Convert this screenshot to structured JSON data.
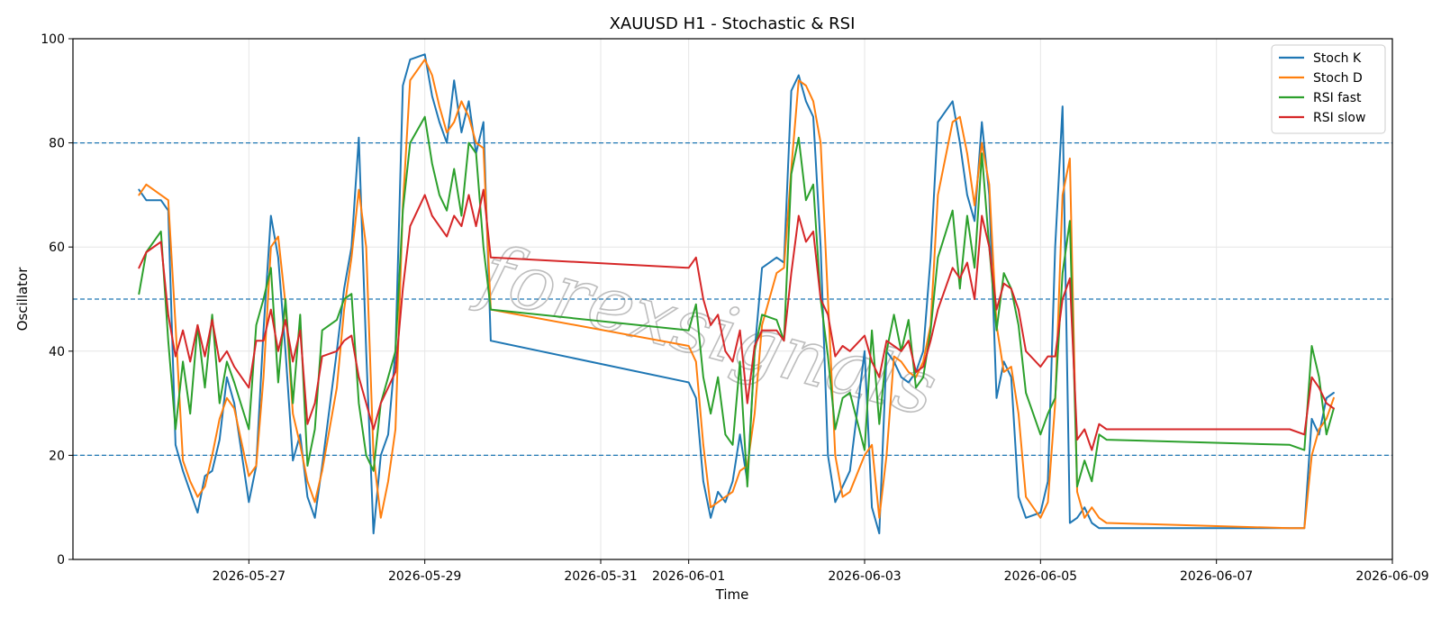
{
  "chart_data": {
    "type": "line",
    "title": "XAUUSD H1 - Stochastic & RSI",
    "xlabel": "Time",
    "ylabel": "Oscillator",
    "ylim": [
      0,
      100
    ],
    "xlim": [
      "2026-05-25T00:00",
      "2026-06-09T00:00"
    ],
    "yticks": [
      0,
      20,
      40,
      60,
      80,
      100
    ],
    "xticks": [
      "2026-05-27",
      "2026-05-29",
      "2026-05-31",
      "2026-06-01",
      "2026-06-03",
      "2026-06-05",
      "2026-06-07",
      "2026-06-09"
    ],
    "grid": true,
    "legend_position": "top-right",
    "reference_lines": [
      20,
      50,
      80
    ],
    "watermark": "forexsignals",
    "series": [
      {
        "name": "Stoch K",
        "color": "#1f77b4",
        "x": [
          "2026-05-25T18:00",
          "2026-05-25T20:00",
          "2026-05-26T00:00",
          "2026-05-26T02:00",
          "2026-05-26T04:00",
          "2026-05-26T06:00",
          "2026-05-26T08:00",
          "2026-05-26T10:00",
          "2026-05-26T12:00",
          "2026-05-26T14:00",
          "2026-05-26T16:00",
          "2026-05-26T18:00",
          "2026-05-26T20:00",
          "2026-05-27T00:00",
          "2026-05-27T02:00",
          "2026-05-27T04:00",
          "2026-05-27T06:00",
          "2026-05-27T08:00",
          "2026-05-27T10:00",
          "2026-05-27T12:00",
          "2026-05-27T14:00",
          "2026-05-27T16:00",
          "2026-05-27T18:00",
          "2026-05-27T20:00",
          "2026-05-28T00:00",
          "2026-05-28T02:00",
          "2026-05-28T04:00",
          "2026-05-28T06:00",
          "2026-05-28T08:00",
          "2026-05-28T10:00",
          "2026-05-28T12:00",
          "2026-05-28T14:00",
          "2026-05-28T16:00",
          "2026-05-28T18:00",
          "2026-05-28T20:00",
          "2026-05-29T00:00",
          "2026-05-29T02:00",
          "2026-05-29T04:00",
          "2026-05-29T06:00",
          "2026-05-29T08:00",
          "2026-05-29T10:00",
          "2026-05-29T12:00",
          "2026-05-29T14:00",
          "2026-05-29T16:00",
          "2026-05-29T18:00",
          "2026-06-01T00:00",
          "2026-06-01T02:00",
          "2026-06-01T04:00",
          "2026-06-01T06:00",
          "2026-06-01T08:00",
          "2026-06-01T10:00",
          "2026-06-01T12:00",
          "2026-06-01T14:00",
          "2026-06-01T16:00",
          "2026-06-01T18:00",
          "2026-06-01T20:00",
          "2026-06-02T00:00",
          "2026-06-02T02:00",
          "2026-06-02T04:00",
          "2026-06-02T06:00",
          "2026-06-02T08:00",
          "2026-06-02T10:00",
          "2026-06-02T12:00",
          "2026-06-02T14:00",
          "2026-06-02T16:00",
          "2026-06-02T18:00",
          "2026-06-02T20:00",
          "2026-06-03T00:00",
          "2026-06-03T02:00",
          "2026-06-03T04:00",
          "2026-06-03T06:00",
          "2026-06-03T08:00",
          "2026-06-03T10:00",
          "2026-06-03T12:00",
          "2026-06-03T14:00",
          "2026-06-03T16:00",
          "2026-06-03T18:00",
          "2026-06-03T20:00",
          "2026-06-04T00:00",
          "2026-06-04T02:00",
          "2026-06-04T04:00",
          "2026-06-04T06:00",
          "2026-06-04T08:00",
          "2026-06-04T10:00",
          "2026-06-04T12:00",
          "2026-06-04T14:00",
          "2026-06-04T16:00",
          "2026-06-04T18:00",
          "2026-06-04T20:00",
          "2026-06-05T00:00",
          "2026-06-05T02:00",
          "2026-06-05T04:00",
          "2026-06-05T06:00",
          "2026-06-05T08:00",
          "2026-06-05T10:00",
          "2026-06-05T12:00",
          "2026-06-05T14:00",
          "2026-06-05T16:00",
          "2026-06-05T18:00",
          "2026-06-07T20:00",
          "2026-06-08T00:00",
          "2026-06-08T02:00",
          "2026-06-08T04:00",
          "2026-06-08T06:00",
          "2026-06-08T08:00"
        ],
        "y": [
          71,
          69,
          69,
          67,
          22,
          17,
          13,
          9,
          16,
          17,
          23,
          35,
          30,
          11,
          18,
          44,
          66,
          58,
          40,
          19,
          24,
          12,
          8,
          18,
          40,
          52,
          60,
          81,
          40,
          5,
          20,
          24,
          40,
          91,
          96,
          97,
          89,
          84,
          80,
          92,
          82,
          88,
          78,
          84,
          42,
          34,
          31,
          15,
          8,
          13,
          11,
          15,
          24,
          15,
          40,
          56,
          58,
          57,
          90,
          93,
          88,
          85,
          60,
          20,
          11,
          14,
          17,
          40,
          10,
          5,
          40,
          38,
          35,
          34,
          36,
          40,
          58,
          84,
          88,
          80,
          70,
          65,
          84,
          70,
          31,
          38,
          35,
          12,
          8,
          9,
          15,
          60,
          87,
          7,
          8,
          10,
          7,
          6,
          6,
          6,
          6,
          27,
          24,
          31,
          32
        ]
      },
      {
        "name": "Stoch D",
        "color": "#ff7f0e",
        "x": [
          "2026-05-25T18:00",
          "2026-05-25T20:00",
          "2026-05-26T00:00",
          "2026-05-26T02:00",
          "2026-05-26T04:00",
          "2026-05-26T06:00",
          "2026-05-26T08:00",
          "2026-05-26T10:00",
          "2026-05-26T12:00",
          "2026-05-26T14:00",
          "2026-05-26T16:00",
          "2026-05-26T18:00",
          "2026-05-26T20:00",
          "2026-05-27T00:00",
          "2026-05-27T02:00",
          "2026-05-27T04:00",
          "2026-05-27T06:00",
          "2026-05-27T08:00",
          "2026-05-27T10:00",
          "2026-05-27T12:00",
          "2026-05-27T14:00",
          "2026-05-27T16:00",
          "2026-05-27T18:00",
          "2026-05-27T20:00",
          "2026-05-28T00:00",
          "2026-05-28T02:00",
          "2026-05-28T04:00",
          "2026-05-28T06:00",
          "2026-05-28T08:00",
          "2026-05-28T10:00",
          "2026-05-28T12:00",
          "2026-05-28T14:00",
          "2026-05-28T16:00",
          "2026-05-28T18:00",
          "2026-05-28T20:00",
          "2026-05-29T00:00",
          "2026-05-29T02:00",
          "2026-05-29T04:00",
          "2026-05-29T06:00",
          "2026-05-29T08:00",
          "2026-05-29T10:00",
          "2026-05-29T12:00",
          "2026-05-29T14:00",
          "2026-05-29T16:00",
          "2026-05-29T18:00",
          "2026-06-01T00:00",
          "2026-06-01T02:00",
          "2026-06-01T04:00",
          "2026-06-01T06:00",
          "2026-06-01T08:00",
          "2026-06-01T10:00",
          "2026-06-01T12:00",
          "2026-06-01T14:00",
          "2026-06-01T16:00",
          "2026-06-01T18:00",
          "2026-06-01T20:00",
          "2026-06-02T00:00",
          "2026-06-02T02:00",
          "2026-06-02T04:00",
          "2026-06-02T06:00",
          "2026-06-02T08:00",
          "2026-06-02T10:00",
          "2026-06-02T12:00",
          "2026-06-02T14:00",
          "2026-06-02T16:00",
          "2026-06-02T18:00",
          "2026-06-02T20:00",
          "2026-06-03T00:00",
          "2026-06-03T02:00",
          "2026-06-03T04:00",
          "2026-06-03T06:00",
          "2026-06-03T08:00",
          "2026-06-03T10:00",
          "2026-06-03T12:00",
          "2026-06-03T14:00",
          "2026-06-03T16:00",
          "2026-06-03T18:00",
          "2026-06-03T20:00",
          "2026-06-04T00:00",
          "2026-06-04T02:00",
          "2026-06-04T04:00",
          "2026-06-04T06:00",
          "2026-06-04T08:00",
          "2026-06-04T10:00",
          "2026-06-04T12:00",
          "2026-06-04T14:00",
          "2026-06-04T16:00",
          "2026-06-04T18:00",
          "2026-06-04T20:00",
          "2026-06-05T00:00",
          "2026-06-05T02:00",
          "2026-06-05T04:00",
          "2026-06-05T06:00",
          "2026-06-05T08:00",
          "2026-06-05T10:00",
          "2026-06-05T12:00",
          "2026-06-05T14:00",
          "2026-06-05T16:00",
          "2026-06-05T18:00",
          "2026-06-07T20:00",
          "2026-06-08T00:00",
          "2026-06-08T02:00",
          "2026-06-08T04:00",
          "2026-06-08T06:00",
          "2026-06-08T08:00"
        ],
        "y": [
          70,
          72,
          70,
          69,
          45,
          19,
          15,
          12,
          14,
          20,
          27,
          31,
          29,
          16,
          18,
          35,
          60,
          62,
          49,
          28,
          22,
          15,
          11,
          17,
          33,
          48,
          58,
          71,
          60,
          20,
          8,
          15,
          25,
          68,
          92,
          96,
          93,
          87,
          82,
          84,
          88,
          85,
          80,
          79,
          48,
          41,
          38,
          22,
          10,
          11,
          12,
          13,
          17,
          18,
          28,
          45,
          55,
          56,
          75,
          92,
          91,
          88,
          80,
          50,
          20,
          12,
          13,
          20,
          22,
          8,
          20,
          39,
          38,
          36,
          35,
          38,
          45,
          70,
          84,
          85,
          78,
          68,
          80,
          72,
          45,
          36,
          37,
          28,
          12,
          8,
          11,
          30,
          70,
          77,
          13,
          8,
          10,
          8,
          7,
          6,
          6,
          20,
          25,
          27,
          31
        ]
      },
      {
        "name": "RSI fast",
        "color": "#2ca02c",
        "x": [
          "2026-05-25T18:00",
          "2026-05-25T20:00",
          "2026-05-26T00:00",
          "2026-05-26T02:00",
          "2026-05-26T04:00",
          "2026-05-26T06:00",
          "2026-05-26T08:00",
          "2026-05-26T10:00",
          "2026-05-26T12:00",
          "2026-05-26T14:00",
          "2026-05-26T16:00",
          "2026-05-26T18:00",
          "2026-05-26T20:00",
          "2026-05-27T00:00",
          "2026-05-27T02:00",
          "2026-05-27T04:00",
          "2026-05-27T06:00",
          "2026-05-27T08:00",
          "2026-05-27T10:00",
          "2026-05-27T12:00",
          "2026-05-27T14:00",
          "2026-05-27T16:00",
          "2026-05-27T18:00",
          "2026-05-27T20:00",
          "2026-05-28T00:00",
          "2026-05-28T02:00",
          "2026-05-28T04:00",
          "2026-05-28T06:00",
          "2026-05-28T08:00",
          "2026-05-28T10:00",
          "2026-05-28T12:00",
          "2026-05-28T14:00",
          "2026-05-28T16:00",
          "2026-05-28T18:00",
          "2026-05-28T20:00",
          "2026-05-29T00:00",
          "2026-05-29T02:00",
          "2026-05-29T04:00",
          "2026-05-29T06:00",
          "2026-05-29T08:00",
          "2026-05-29T10:00",
          "2026-05-29T12:00",
          "2026-05-29T14:00",
          "2026-05-29T16:00",
          "2026-05-29T18:00",
          "2026-06-01T00:00",
          "2026-06-01T02:00",
          "2026-06-01T04:00",
          "2026-06-01T06:00",
          "2026-06-01T08:00",
          "2026-06-01T10:00",
          "2026-06-01T12:00",
          "2026-06-01T14:00",
          "2026-06-01T16:00",
          "2026-06-01T18:00",
          "2026-06-01T20:00",
          "2026-06-02T00:00",
          "2026-06-02T02:00",
          "2026-06-02T04:00",
          "2026-06-02T06:00",
          "2026-06-02T08:00",
          "2026-06-02T10:00",
          "2026-06-02T12:00",
          "2026-06-02T14:00",
          "2026-06-02T16:00",
          "2026-06-02T18:00",
          "2026-06-02T20:00",
          "2026-06-03T00:00",
          "2026-06-03T02:00",
          "2026-06-03T04:00",
          "2026-06-03T06:00",
          "2026-06-03T08:00",
          "2026-06-03T10:00",
          "2026-06-03T12:00",
          "2026-06-03T14:00",
          "2026-06-03T16:00",
          "2026-06-03T18:00",
          "2026-06-03T20:00",
          "2026-06-04T00:00",
          "2026-06-04T02:00",
          "2026-06-04T04:00",
          "2026-06-04T06:00",
          "2026-06-04T08:00",
          "2026-06-04T10:00",
          "2026-06-04T12:00",
          "2026-06-04T14:00",
          "2026-06-04T16:00",
          "2026-06-04T18:00",
          "2026-06-04T20:00",
          "2026-06-05T00:00",
          "2026-06-05T02:00",
          "2026-06-05T04:00",
          "2026-06-05T06:00",
          "2026-06-05T08:00",
          "2026-06-05T10:00",
          "2026-06-05T12:00",
          "2026-06-05T14:00",
          "2026-06-05T16:00",
          "2026-06-05T18:00",
          "2026-06-07T20:00",
          "2026-06-08T00:00",
          "2026-06-08T02:00",
          "2026-06-08T04:00",
          "2026-06-08T06:00",
          "2026-06-08T08:00"
        ],
        "y": [
          51,
          59,
          63,
          42,
          25,
          38,
          28,
          45,
          33,
          47,
          30,
          38,
          34,
          25,
          45,
          50,
          56,
          34,
          50,
          30,
          47,
          18,
          25,
          44,
          46,
          50,
          51,
          30,
          20,
          17,
          30,
          35,
          40,
          67,
          80,
          85,
          76,
          70,
          67,
          75,
          66,
          80,
          78,
          60,
          48,
          44,
          49,
          35,
          28,
          35,
          24,
          22,
          38,
          14,
          40,
          47,
          46,
          42,
          74,
          81,
          69,
          72,
          50,
          39,
          25,
          31,
          32,
          21,
          44,
          26,
          40,
          47,
          40,
          46,
          33,
          35,
          44,
          58,
          67,
          52,
          66,
          56,
          78,
          60,
          44,
          55,
          52,
          45,
          32,
          24,
          28,
          31,
          55,
          65,
          14,
          19,
          15,
          24,
          23,
          22,
          21,
          41,
          35,
          24,
          29
        ]
      },
      {
        "name": "RSI slow",
        "color": "#d62728",
        "x": [
          "2026-05-25T18:00",
          "2026-05-25T20:00",
          "2026-05-26T00:00",
          "2026-05-26T02:00",
          "2026-05-26T04:00",
          "2026-05-26T06:00",
          "2026-05-26T08:00",
          "2026-05-26T10:00",
          "2026-05-26T12:00",
          "2026-05-26T14:00",
          "2026-05-26T16:00",
          "2026-05-26T18:00",
          "2026-05-26T20:00",
          "2026-05-27T00:00",
          "2026-05-27T02:00",
          "2026-05-27T04:00",
          "2026-05-27T06:00",
          "2026-05-27T08:00",
          "2026-05-27T10:00",
          "2026-05-27T12:00",
          "2026-05-27T14:00",
          "2026-05-27T16:00",
          "2026-05-27T18:00",
          "2026-05-27T20:00",
          "2026-05-28T00:00",
          "2026-05-28T02:00",
          "2026-05-28T04:00",
          "2026-05-28T06:00",
          "2026-05-28T08:00",
          "2026-05-28T10:00",
          "2026-05-28T12:00",
          "2026-05-28T14:00",
          "2026-05-28T16:00",
          "2026-05-28T18:00",
          "2026-05-28T20:00",
          "2026-05-29T00:00",
          "2026-05-29T02:00",
          "2026-05-29T04:00",
          "2026-05-29T06:00",
          "2026-05-29T08:00",
          "2026-05-29T10:00",
          "2026-05-29T12:00",
          "2026-05-29T14:00",
          "2026-05-29T16:00",
          "2026-05-29T18:00",
          "2026-06-01T00:00",
          "2026-06-01T02:00",
          "2026-06-01T04:00",
          "2026-06-01T06:00",
          "2026-06-01T08:00",
          "2026-06-01T10:00",
          "2026-06-01T12:00",
          "2026-06-01T14:00",
          "2026-06-01T16:00",
          "2026-06-01T18:00",
          "2026-06-01T20:00",
          "2026-06-02T00:00",
          "2026-06-02T02:00",
          "2026-06-02T04:00",
          "2026-06-02T06:00",
          "2026-06-02T08:00",
          "2026-06-02T10:00",
          "2026-06-02T12:00",
          "2026-06-02T14:00",
          "2026-06-02T16:00",
          "2026-06-02T18:00",
          "2026-06-02T20:00",
          "2026-06-03T00:00",
          "2026-06-03T02:00",
          "2026-06-03T04:00",
          "2026-06-03T06:00",
          "2026-06-03T08:00",
          "2026-06-03T10:00",
          "2026-06-03T12:00",
          "2026-06-03T14:00",
          "2026-06-03T16:00",
          "2026-06-03T18:00",
          "2026-06-03T20:00",
          "2026-06-04T00:00",
          "2026-06-04T02:00",
          "2026-06-04T04:00",
          "2026-06-04T06:00",
          "2026-06-04T08:00",
          "2026-06-04T10:00",
          "2026-06-04T12:00",
          "2026-06-04T14:00",
          "2026-06-04T16:00",
          "2026-06-04T18:00",
          "2026-06-04T20:00",
          "2026-06-05T00:00",
          "2026-06-05T02:00",
          "2026-06-05T04:00",
          "2026-06-05T06:00",
          "2026-06-05T08:00",
          "2026-06-05T10:00",
          "2026-06-05T12:00",
          "2026-06-05T14:00",
          "2026-06-05T16:00",
          "2026-06-05T18:00",
          "2026-06-07T20:00",
          "2026-06-08T00:00",
          "2026-06-08T02:00",
          "2026-06-08T04:00",
          "2026-06-08T06:00",
          "2026-06-08T08:00"
        ],
        "y": [
          56,
          59,
          61,
          47,
          39,
          44,
          38,
          45,
          39,
          46,
          38,
          40,
          37,
          33,
          42,
          42,
          48,
          40,
          46,
          38,
          44,
          26,
          30,
          39,
          40,
          42,
          43,
          35,
          30,
          25,
          30,
          33,
          36,
          52,
          64,
          70,
          66,
          64,
          62,
          66,
          64,
          70,
          64,
          71,
          58,
          56,
          58,
          50,
          45,
          47,
          40,
          38,
          44,
          30,
          41,
          44,
          44,
          42,
          55,
          66,
          61,
          63,
          50,
          47,
          39,
          41,
          40,
          43,
          38,
          35,
          42,
          41,
          40,
          42,
          36,
          37,
          42,
          48,
          56,
          54,
          57,
          50,
          66,
          60,
          48,
          53,
          52,
          48,
          40,
          37,
          39,
          39,
          50,
          54,
          23,
          25,
          21,
          26,
          25,
          25,
          24,
          35,
          33,
          30,
          29
        ]
      }
    ]
  }
}
